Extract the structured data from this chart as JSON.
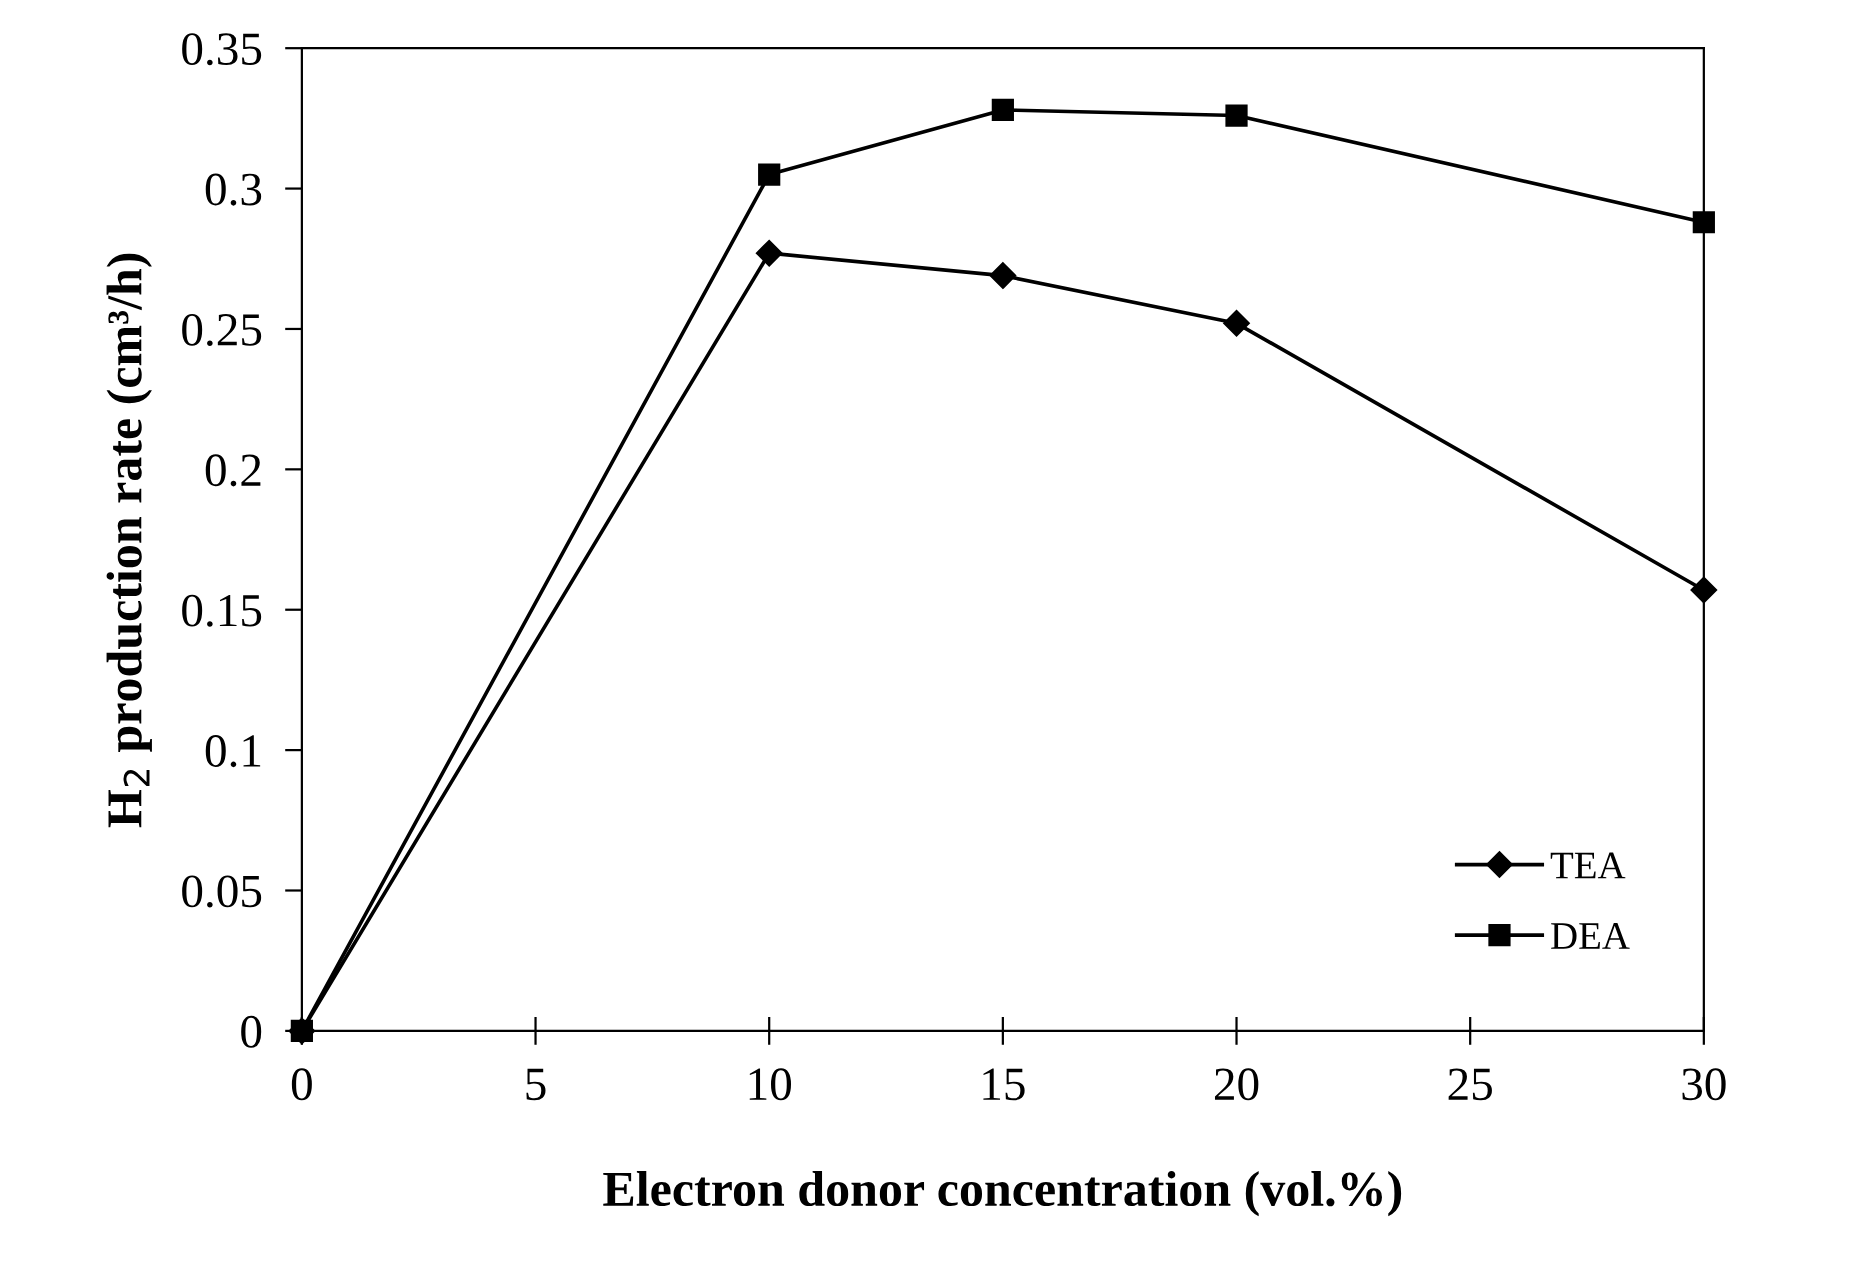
{
  "chart_data": {
    "type": "line",
    "xlabel": "Electron donor concentration (vol.%)",
    "ylabel": "H$_{2}$ production rate (cm³/h)",
    "x": [
      0,
      10,
      15,
      20,
      30
    ],
    "series": [
      {
        "name": "TEA",
        "color": "#000000",
        "marker": "diamond",
        "values": [
          0,
          0.277,
          0.269,
          0.252,
          0.157
        ]
      },
      {
        "name": "DEA",
        "color": "#000000",
        "marker": "square",
        "values": [
          0,
          0.305,
          0.328,
          0.326,
          0.288
        ]
      }
    ],
    "xlim": [
      0,
      30
    ],
    "xticks": [
      0,
      5,
      10,
      15,
      20,
      25,
      30
    ],
    "ylim": [
      0,
      0.35
    ],
    "yticks": [
      0,
      0.05,
      0.1,
      0.15,
      0.2,
      0.25,
      0.3,
      0.35
    ],
    "grid": false,
    "legend": "bottom right",
    "line_style": "solid"
  }
}
